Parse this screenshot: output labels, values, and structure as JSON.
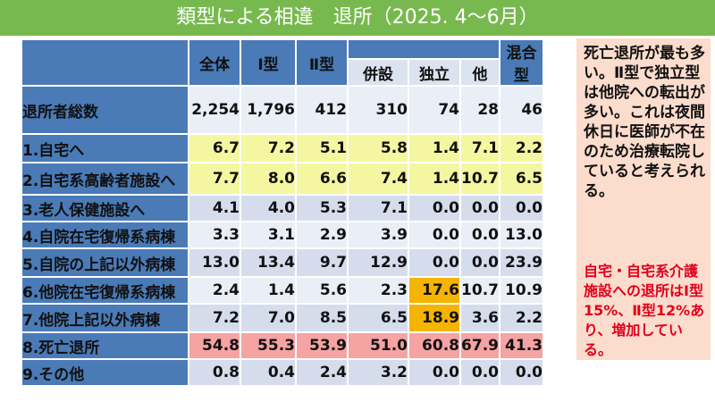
{
  "title": "類型による相違　退所（2025. 4～6月）",
  "table": {
    "headers": {
      "total": "全体",
      "type1": "Ⅰ型",
      "type2": "Ⅱ型",
      "heisetsu": "併設",
      "dokuritsu": "独立",
      "other": "他",
      "mixed": "混合型"
    },
    "rows": [
      {
        "label": "退所者総数",
        "values": [
          "2,254",
          "1,796",
          "412",
          "310",
          "74",
          "28",
          "46"
        ]
      },
      {
        "label": "1.自宅へ",
        "values": [
          "6.7",
          "7.2",
          "5.1",
          "5.8",
          "1.4",
          "7.1",
          "2.2"
        ]
      },
      {
        "label": "2.自宅系高齢者施設へ",
        "values": [
          "7.7",
          "8.0",
          "6.6",
          "7.4",
          "1.4",
          "10.7",
          "6.5"
        ]
      },
      {
        "label": "3.老人保健施設へ",
        "values": [
          "4.1",
          "4.0",
          "5.3",
          "7.1",
          "0.0",
          "0.0",
          "0.0"
        ]
      },
      {
        "label": "4.自院在宅復帰系病棟",
        "values": [
          "3.3",
          "3.1",
          "2.9",
          "3.9",
          "0.0",
          "0.0",
          "13.0"
        ]
      },
      {
        "label": "5.自院の上記以外病棟",
        "values": [
          "13.0",
          "13.4",
          "9.7",
          "12.9",
          "0.0",
          "0.0",
          "23.9"
        ]
      },
      {
        "label": "6.他院在宅復帰系病棟",
        "values": [
          "2.4",
          "1.4",
          "5.6",
          "2.3",
          "17.6",
          "10.7",
          "10.9"
        ]
      },
      {
        "label": "7.他院上記以外病棟",
        "values": [
          "7.2",
          "7.0",
          "8.5",
          "6.5",
          "18.9",
          "3.6",
          "2.2"
        ]
      },
      {
        "label": "8.死亡退所",
        "values": [
          "54.8",
          "55.3",
          "53.9",
          "51.0",
          "60.8",
          "67.9",
          "41.3"
        ]
      },
      {
        "label": "9.その他",
        "values": [
          "0.8",
          "0.4",
          "2.4",
          "3.2",
          "0.0",
          "0.0",
          "0.0"
        ]
      }
    ]
  },
  "side": {
    "text1": "死亡退所が最も多い。Ⅱ型で独立型は他院への転出が多い。これは夜間休日に医師が不在のため治療転院していると考えられる。",
    "text2": "自宅・自宅系介護施設への退所はⅠ型15%、Ⅱ型12%あり、増加している。"
  },
  "colors": {
    "title_bg": "#77b94e",
    "header_bg": "#4a7bb7",
    "row_white": "#eaeef6",
    "row_blue": "#d5dded",
    "row_yellow": "#f4f7a0",
    "row_red": "#f6a3a3",
    "highlight": "#f5b400",
    "side_bg": "#fcdccc",
    "side_red_text": "#e0001b"
  }
}
